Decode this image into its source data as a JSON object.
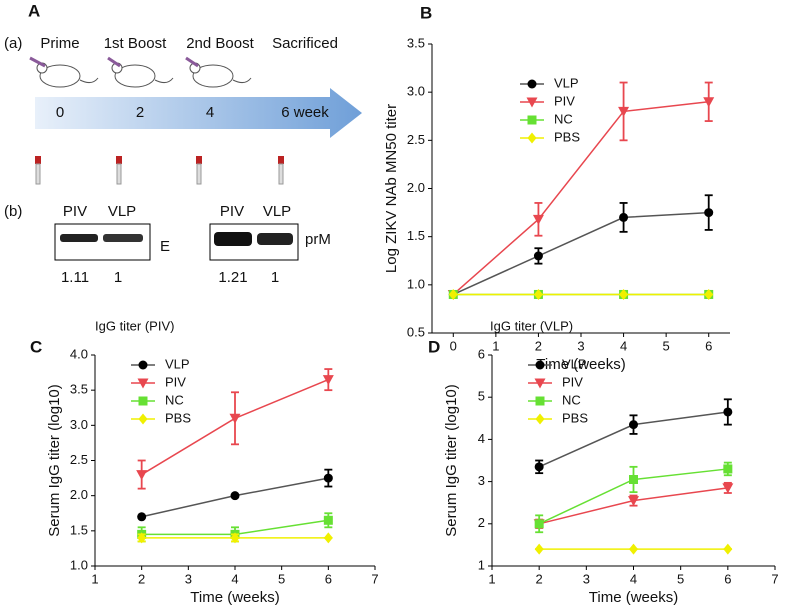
{
  "panel_a": {
    "label": "A",
    "timeline_label": "(a)",
    "events": [
      "Prime",
      "1st Boost",
      "2nd Boost",
      "Sacrificed"
    ],
    "times": [
      "0",
      "2",
      "4",
      "6 week"
    ],
    "blot_label": "(b)",
    "blots": [
      {
        "lanes": [
          "PIV",
          "VLP"
        ],
        "protein": "E",
        "ratios": [
          1.11,
          1
        ]
      },
      {
        "lanes": [
          "PIV",
          "VLP"
        ],
        "protein": "prM",
        "ratios": [
          1.21,
          1
        ]
      }
    ]
  },
  "chart_data": [
    {
      "type": "line",
      "panel": "B",
      "x_label": "Time (weeks)",
      "y_label": "Log ZIKV NAb MN50 titer",
      "x": [
        0,
        2,
        4,
        6
      ],
      "xlim": [
        -0.5,
        6.5
      ],
      "xticks": [
        0,
        1,
        2,
        3,
        4,
        5,
        6
      ],
      "ylim": [
        0.5,
        3.5
      ],
      "yticks": [
        0.5,
        {
          "value": 1,
          "label": "1.0"
        },
        1.5,
        {
          "value": 2,
          "label": "2.0"
        },
        2.5,
        {
          "value": 3,
          "label": "3.0"
        },
        3.5
      ],
      "legend": "upper left",
      "series": [
        {
          "name": "VLP",
          "color": "#000000",
          "marker": "circle",
          "values": [
            0.9,
            1.3,
            1.7,
            1.75
          ],
          "errors": [
            0,
            0.08,
            0.15,
            0.18
          ]
        },
        {
          "name": "PIV",
          "color": "#e8474f",
          "marker": "triangle-down",
          "values": [
            0.9,
            1.68,
            2.8,
            2.9
          ],
          "errors": [
            0,
            0.17,
            0.3,
            0.2
          ]
        },
        {
          "name": "NC",
          "color": "#66e033",
          "marker": "square",
          "values": [
            0.9,
            0.9,
            0.9,
            0.9
          ],
          "errors": [
            0,
            0,
            0,
            0
          ]
        },
        {
          "name": "PBS",
          "color": "#f0f000",
          "marker": "diamond",
          "values": [
            0.9,
            0.9,
            0.9,
            0.9
          ],
          "errors": [
            0,
            0,
            0,
            0
          ]
        }
      ]
    },
    {
      "type": "line",
      "panel": "C",
      "title": "IgG titer (PIV)",
      "x_label": "Time (weeks)",
      "y_label": "Serum IgG titer (log10)",
      "x": [
        2,
        4,
        6
      ],
      "xlim": [
        1,
        7
      ],
      "xticks": [
        1,
        2,
        3,
        4,
        5,
        6,
        7
      ],
      "ylim": [
        1,
        4
      ],
      "yticks": [
        {
          "value": 1,
          "label": "1.0"
        },
        1.5,
        {
          "value": 2,
          "label": "2.0"
        },
        2.5,
        {
          "value": 3,
          "label": "3.0"
        },
        3.5,
        {
          "value": 4,
          "label": "4.0"
        }
      ],
      "legend": "upper left",
      "series": [
        {
          "name": "VLP",
          "color": "#000000",
          "marker": "circle",
          "values": [
            1.7,
            2.0,
            2.25
          ],
          "errors": [
            0,
            0,
            0.12
          ]
        },
        {
          "name": "PIV",
          "color": "#e8474f",
          "marker": "triangle-down",
          "values": [
            2.3,
            3.1,
            3.65
          ],
          "errors": [
            0.2,
            0.37,
            0.15
          ]
        },
        {
          "name": "NC",
          "color": "#66e033",
          "marker": "square",
          "values": [
            1.45,
            1.45,
            1.65
          ],
          "errors": [
            0.1,
            0.1,
            0.1
          ]
        },
        {
          "name": "PBS",
          "color": "#f0f000",
          "marker": "diamond",
          "values": [
            1.4,
            1.4,
            1.4
          ],
          "errors": [
            0.05,
            0.05,
            0
          ]
        }
      ]
    },
    {
      "type": "line",
      "panel": "D",
      "title": "IgG titer (VLP)",
      "x_label": "Time (weeks)",
      "y_label": "Serum IgG titer (log10)",
      "x": [
        2,
        4,
        6
      ],
      "xlim": [
        1,
        7
      ],
      "xticks": [
        1,
        2,
        3,
        4,
        5,
        6,
        7
      ],
      "ylim": [
        1,
        6
      ],
      "yticks": [
        1,
        2,
        3,
        4,
        5,
        6
      ],
      "legend": "upper left",
      "series": [
        {
          "name": "VLP",
          "color": "#000000",
          "marker": "circle",
          "values": [
            3.35,
            4.35,
            4.65
          ],
          "errors": [
            0.15,
            0.22,
            0.3
          ]
        },
        {
          "name": "PIV",
          "color": "#e8474f",
          "marker": "triangle-down",
          "values": [
            2.0,
            2.55,
            2.85
          ],
          "errors": [
            0.1,
            0.12,
            0.12
          ]
        },
        {
          "name": "NC",
          "color": "#66e033",
          "marker": "square",
          "values": [
            2.0,
            3.05,
            3.3
          ],
          "errors": [
            0.2,
            0.3,
            0.15
          ]
        },
        {
          "name": "PBS",
          "color": "#f0f000",
          "marker": "diamond",
          "values": [
            1.4,
            1.4,
            1.4
          ],
          "errors": [
            0,
            0,
            0
          ]
        }
      ]
    }
  ]
}
